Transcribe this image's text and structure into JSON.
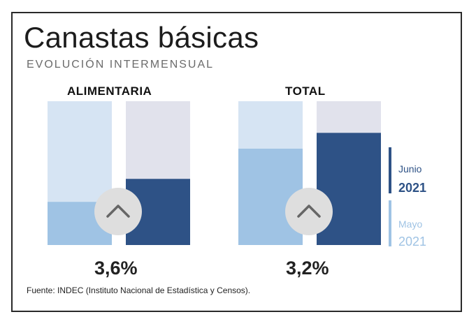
{
  "title": "Canastas básicas",
  "subtitle": "EVOLUCIÓN INTERMENSUAL",
  "source": "Fuente: INDEC (Instituto Nacional de Estadística y Censos).",
  "colors": {
    "mayo": "#9fc3e4",
    "mayo_track": "#d6e4f3",
    "junio": "#2e5286",
    "junio_track": "#e1e2ec",
    "arrow_circle": "#dedede",
    "arrow": "#666666"
  },
  "legend": {
    "junio_month": "Junio",
    "junio_year": "2021",
    "mayo_month": "Mayo",
    "mayo_year": "2021"
  },
  "chart_data": [
    {
      "type": "bar",
      "title": "ALIMENTARIA",
      "change_label": "3,6%",
      "categories": [
        "Mayo 2021",
        "Junio 2021"
      ],
      "values": [
        0.3,
        0.46
      ],
      "ylim": [
        0,
        1
      ],
      "icon": "chevron-up-icon"
    },
    {
      "type": "bar",
      "title": "TOTAL",
      "change_label": "3,2%",
      "categories": [
        "Mayo 2021",
        "Junio 2021"
      ],
      "values": [
        0.67,
        0.78
      ],
      "ylim": [
        0,
        1
      ],
      "icon": "chevron-up-icon"
    }
  ]
}
